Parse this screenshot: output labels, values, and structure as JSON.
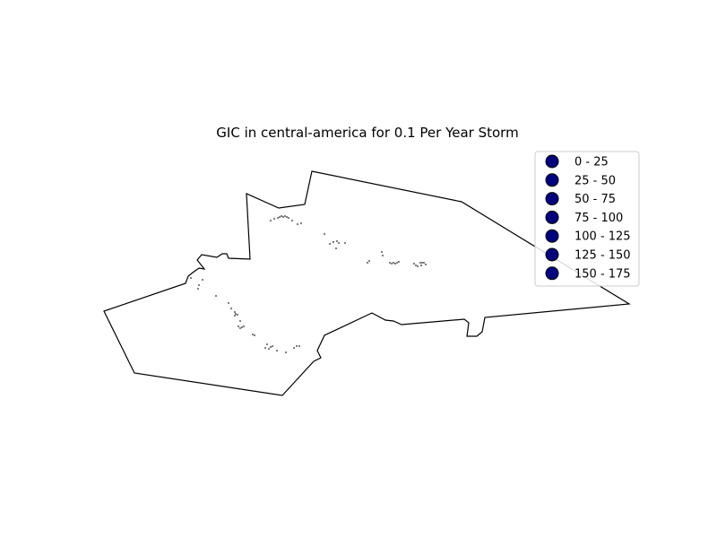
{
  "title": "GIC in central-america for 0.1 Per Year Storm",
  "legend": {
    "placement": "upper-right",
    "marker_color": "#000080",
    "marker_edge": "#000000",
    "entries": [
      "0 - 25",
      "25 - 50",
      "50 - 75",
      "75 - 100",
      "100 - 125",
      "125 - 150",
      "150 - 175"
    ]
  },
  "map": {
    "region_outline_color": "#000000",
    "point_color": "#000000",
    "axes_visible": false
  }
}
